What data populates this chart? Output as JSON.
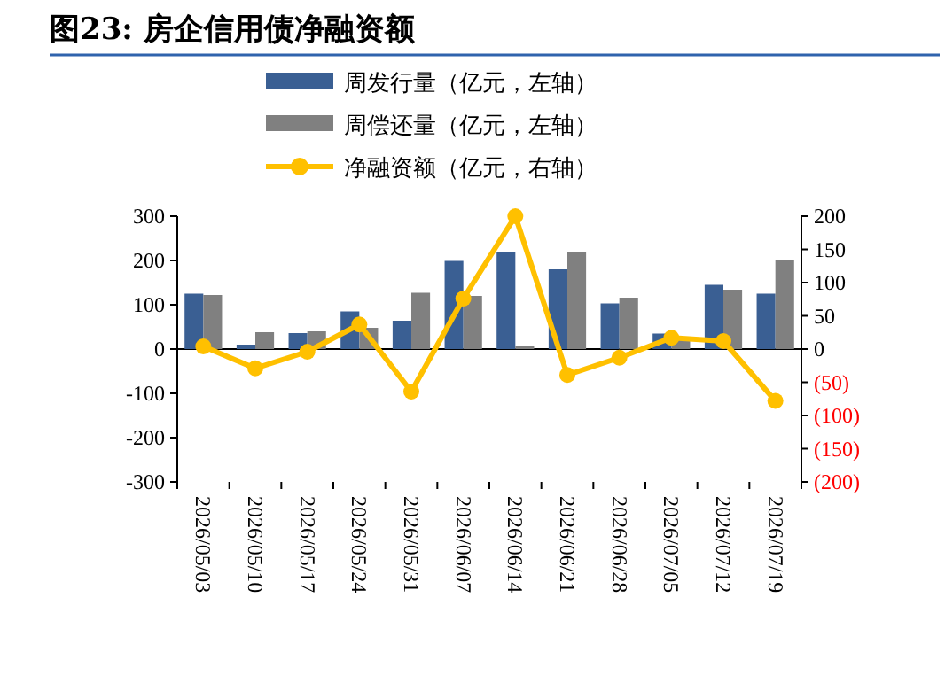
{
  "chart_data": {
    "type": "bar",
    "title": "图23: 房企信用债净融资额",
    "categories": [
      "2026/05/03",
      "2026/05/10",
      "2026/05/17",
      "2026/05/24",
      "2026/05/31",
      "2026/06/07",
      "2026/06/14",
      "2026/06/21",
      "2026/06/28",
      "2026/07/05",
      "2026/07/12",
      "2026/07/19"
    ],
    "series": [
      {
        "name": "周发行量（亿元，左轴）",
        "color": "#3a5f93",
        "values": [
          125,
          10,
          36,
          85,
          64,
          199,
          218,
          180,
          103,
          35,
          145,
          125
        ]
      },
      {
        "name": "周偿还量（亿元，左轴）",
        "color": "#808080",
        "values": [
          122,
          38,
          40,
          48,
          127,
          120,
          6,
          219,
          116,
          20,
          134,
          202
        ]
      },
      {
        "name": "净融资额（亿元，右轴）",
        "type": "line",
        "axis": "y2",
        "color": "#ffc000",
        "values": [
          4,
          -29,
          -4,
          37,
          -64,
          76,
          200,
          -39,
          -13,
          17,
          12,
          -78
        ]
      }
    ],
    "ylim": [
      -300,
      300
    ],
    "yticks": [
      -300,
      -200,
      -100,
      0,
      100,
      200,
      300
    ],
    "y2lim": [
      -200,
      200
    ],
    "y2ticks": [
      {
        "value": -200,
        "label": "(200)"
      },
      {
        "value": -150,
        "label": "(150)"
      },
      {
        "value": -100,
        "label": "(100)"
      },
      {
        "value": -50,
        "label": "(50)"
      },
      0,
      50,
      100,
      150,
      200
    ],
    "marker": "circle",
    "legend": "top"
  }
}
